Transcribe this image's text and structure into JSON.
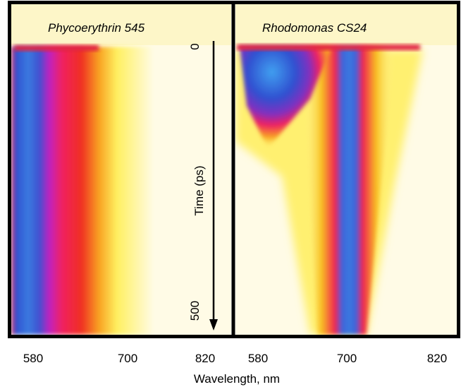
{
  "panels": [
    {
      "title": "Phycoerythrin 545",
      "x_ticks": [
        "580",
        "700",
        "820"
      ]
    },
    {
      "title": "Rhodomonas CS24",
      "x_ticks": [
        "580",
        "700",
        "820"
      ]
    }
  ],
  "time_axis": {
    "label": "Time (ps)",
    "ticks": [
      "0",
      "500"
    ]
  },
  "x_axis_label": "Wavelength, nm"
}
